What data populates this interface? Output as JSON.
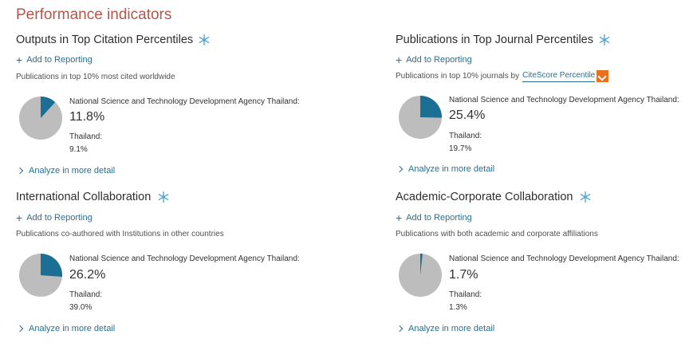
{
  "header": {
    "title": "Performance indicators"
  },
  "colors": {
    "highlight": "#1b6f94",
    "base": "#bdbdbd",
    "title": "#b2574a",
    "link": "#2a6f8f",
    "dropdown": "#e9711c"
  },
  "panels": [
    {
      "title": "Outputs in Top Citation Percentiles",
      "add_label": "Add to Reporting",
      "desc": "Publications in top 10% most cited worldwide",
      "org_label": "National Science and Technology Development Agency Thailand:",
      "org_value": "11.8%",
      "org_fraction": 0.118,
      "country_label": "Thailand:",
      "country_value": "9.1%",
      "analyze_label": "Analyze in more detail"
    },
    {
      "title": "Publications in Top Journal Percentiles",
      "add_label": "Add to Reporting",
      "desc": "Publications in top 10% journals by",
      "metric_selector": "CiteScore Percentile",
      "org_label": "National Science and Technology Development Agency Thailand:",
      "org_value": "25.4%",
      "org_fraction": 0.254,
      "country_label": "Thailand:",
      "country_value": "19.7%",
      "analyze_label": "Analyze in more detail"
    },
    {
      "title": "International Collaboration",
      "add_label": "Add to Reporting",
      "desc": "Publications co-authored with Institutions in other countries",
      "org_label": "National Science and Technology Development Agency Thailand:",
      "org_value": "26.2%",
      "org_fraction": 0.262,
      "country_label": "Thailand:",
      "country_value": "39.0%",
      "analyze_label": "Analyze in more detail"
    },
    {
      "title": "Academic-Corporate Collaboration",
      "add_label": "Add to Reporting",
      "desc": "Publications with both academic and corporate affiliations",
      "org_label": "National Science and Technology Development Agency Thailand:",
      "org_value": "1.7%",
      "org_fraction": 0.017,
      "country_label": "Thailand:",
      "country_value": "1.3%",
      "analyze_label": "Analyze in more detail"
    }
  ]
}
